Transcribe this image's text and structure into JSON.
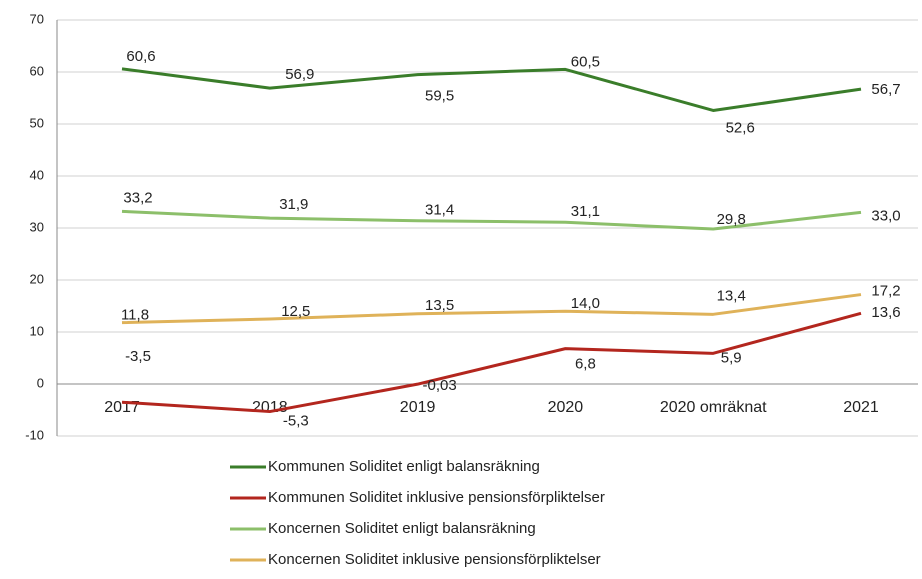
{
  "chart_data": {
    "type": "line",
    "categories": [
      "2017",
      "2018",
      "2019",
      "2020",
      "2020 omräknat",
      "2021"
    ],
    "ylim": [
      -10,
      70
    ],
    "yticks": [
      -10,
      0,
      10,
      20,
      30,
      40,
      50,
      60,
      70
    ],
    "grid": true,
    "series": [
      {
        "name": "Kommunen Soliditet enligt balansräkning",
        "color": "#3a7d2a",
        "values": [
          60.6,
          56.9,
          59.5,
          60.5,
          52.6,
          56.7
        ],
        "value_labels": [
          "60,6",
          "56,9",
          "59,5",
          "60,5",
          "52,6",
          "56,7"
        ]
      },
      {
        "name": "Kommunen Soliditet inklusive pensionsförpliktelser",
        "color": "#b3261e",
        "values": [
          -3.5,
          -5.3,
          -0.03,
          6.8,
          5.9,
          13.6
        ],
        "value_labels": [
          "-3,5",
          "-5,3",
          "-0,03",
          "6,8",
          "5,9",
          "13,6"
        ]
      },
      {
        "name": "Koncernen Soliditet enligt balansräkning",
        "color": "#8cbf6a",
        "values": [
          33.2,
          31.9,
          31.4,
          31.1,
          29.8,
          33.0
        ],
        "value_labels": [
          "33,2",
          "31,9",
          "31,4",
          "31,1",
          "29,8",
          "33,0"
        ]
      },
      {
        "name": "Koncernen Soliditet inklusive pensionsförpliktelser",
        "color": "#dfb259",
        "values": [
          11.8,
          12.5,
          13.5,
          14.0,
          13.4,
          17.2
        ],
        "value_labels": [
          "11,8",
          "12,5",
          "13,5",
          "14,0",
          "13,4",
          "17,2"
        ]
      }
    ]
  }
}
